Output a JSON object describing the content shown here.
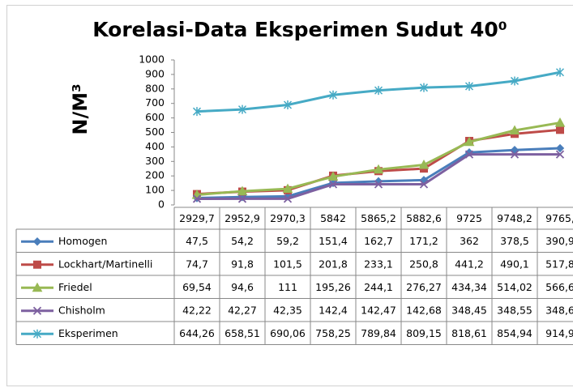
{
  "chart_data": {
    "type": "line",
    "title": "Korelasi-Data Eksperimen Sudut 40⁰",
    "y_label": "N/M³",
    "categories": [
      "2929,7",
      "2952,9",
      "2970,3",
      "5842",
      "5865,2",
      "5882,6",
      "9725",
      "9748,2",
      "9765,"
    ],
    "ylim": [
      0,
      1000
    ],
    "yticks": [
      0,
      100,
      200,
      300,
      400,
      500,
      600,
      700,
      800,
      900,
      1000
    ],
    "grid": false,
    "legend": "table",
    "series": [
      {
        "name": "Homogen",
        "color": "#4a7ebb",
        "marker": "diamond",
        "values": [
          47.5,
          54.2,
          59.2,
          151.4,
          162.7,
          171.2,
          362,
          378.5,
          390.9
        ],
        "value_labels": [
          "47,5",
          "54,2",
          "59,2",
          "151,4",
          "162,7",
          "171,2",
          "362",
          "378,5",
          "390,9"
        ]
      },
      {
        "name": "Lockhart/Martinelli",
        "color": "#be4b48",
        "marker": "square",
        "values": [
          74.7,
          91.8,
          101.5,
          201.8,
          233.1,
          250.8,
          441.2,
          490.1,
          517.8
        ],
        "value_labels": [
          "74,7",
          "91,8",
          "101,5",
          "201,8",
          "233,1",
          "250,8",
          "441,2",
          "490,1",
          "517,8"
        ]
      },
      {
        "name": "Friedel",
        "color": "#98b954",
        "marker": "triangle",
        "values": [
          69.54,
          94.6,
          111,
          195.26,
          244.1,
          276.27,
          434.34,
          514.02,
          566.6
        ],
        "value_labels": [
          "69,54",
          "94,6",
          "111",
          "195,26",
          "244,1",
          "276,27",
          "434,34",
          "514,02",
          "566,6"
        ]
      },
      {
        "name": "Chisholm",
        "color": "#7d60a0",
        "marker": "x",
        "values": [
          42.22,
          42.27,
          42.35,
          142.4,
          142.47,
          142.68,
          348.45,
          348.55,
          348.6
        ],
        "value_labels": [
          "42,22",
          "42,27",
          "42,35",
          "142,4",
          "142,47",
          "142,68",
          "348,45",
          "348,55",
          "348,6"
        ]
      },
      {
        "name": "Eksperimen",
        "color": "#46aac5",
        "marker": "star",
        "values": [
          644.26,
          658.51,
          690.06,
          758.25,
          789.84,
          809.15,
          818.61,
          854.94,
          914.9
        ],
        "value_labels": [
          "644,26",
          "658,51",
          "690,06",
          "758,25",
          "789,84",
          "809,15",
          "818,61",
          "854,94",
          "914,9"
        ]
      }
    ]
  }
}
